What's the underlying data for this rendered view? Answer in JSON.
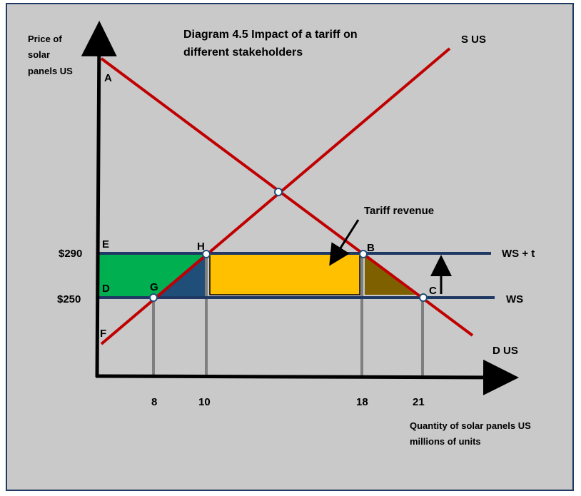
{
  "title_line1": "Diagram 4.5 Impact of a tariff on",
  "title_line2": "different stakeholders",
  "y_axis_title": [
    "Price of",
    "solar",
    "panels US"
  ],
  "x_axis_title": [
    "Quantity of solar panels US",
    "millions of units"
  ],
  "curves": {
    "supply": "S US",
    "demand": "D US",
    "world_price_tariff": "WS + t",
    "world_price": "WS"
  },
  "price_labels": {
    "high": "$290",
    "low": "$250"
  },
  "quantity_ticks": [
    "8",
    "10",
    "18",
    "21"
  ],
  "points": {
    "A": "A",
    "B": "B",
    "C": "C",
    "D": "D",
    "E": "E",
    "F": "F",
    "G": "G",
    "H": "H"
  },
  "tariff_revenue_label": "Tariff revenue",
  "colors": {
    "background": "#c9c9c9",
    "curve": "#c00000",
    "world_price_line": "#1f3864",
    "consumer_loss_area": "#00b050",
    "producer_deadweight": "#1f4e79",
    "tariff_revenue_area": "#ffc000",
    "consumer_deadweight": "#7f6000",
    "drop_line": "#7f7f7f"
  }
}
